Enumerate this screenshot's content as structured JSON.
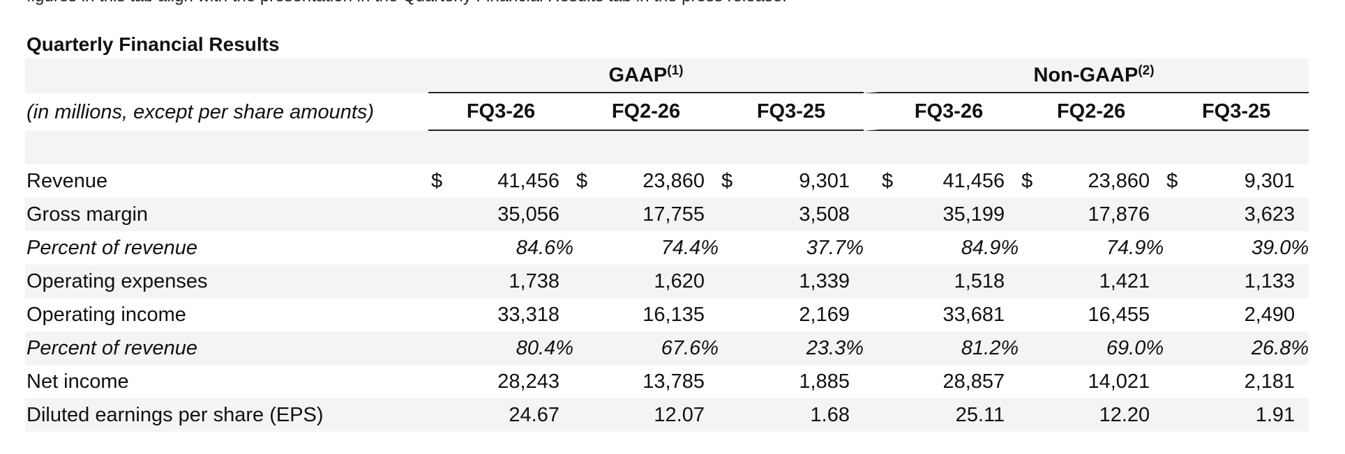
{
  "clipped_top_text": "figures in this tab align with the presentation in the Quarterly Financial Results tab in the press release.",
  "title": "Quarterly Financial Results",
  "groups": {
    "gaap": {
      "label": "GAAP",
      "note": "(1)"
    },
    "nongaap": {
      "label": "Non-GAAP",
      "note": "(2)"
    }
  },
  "subtitle": "(in millions, except per share amounts)",
  "columns": [
    "FQ3-26",
    "FQ2-26",
    "FQ3-25",
    "FQ3-26",
    "FQ2-26",
    "FQ3-25"
  ],
  "currency_symbol": "$",
  "rows": [
    {
      "label": "Revenue",
      "italic": false,
      "currency": true,
      "values": [
        "41,456",
        "23,860",
        "9,301",
        "41,456",
        "23,860",
        "9,301"
      ]
    },
    {
      "label": "Gross margin",
      "italic": false,
      "currency": false,
      "values": [
        "35,056",
        "17,755",
        "3,508",
        "35,199",
        "17,876",
        "3,623"
      ]
    },
    {
      "label": "Percent of revenue",
      "italic": true,
      "currency": false,
      "values": [
        "84.6%",
        "74.4%",
        "37.7%",
        "84.9%",
        "74.9%",
        "39.0%"
      ]
    },
    {
      "label": "Operating expenses",
      "italic": false,
      "currency": false,
      "values": [
        "1,738",
        "1,620",
        "1,339",
        "1,518",
        "1,421",
        "1,133"
      ]
    },
    {
      "label": "Operating income",
      "italic": false,
      "currency": false,
      "values": [
        "33,318",
        "16,135",
        "2,169",
        "33,681",
        "16,455",
        "2,490"
      ]
    },
    {
      "label": "Percent of revenue",
      "italic": true,
      "currency": false,
      "values": [
        "80.4%",
        "67.6%",
        "23.3%",
        "81.2%",
        "69.0%",
        "26.8%"
      ]
    },
    {
      "label": "Net income",
      "italic": false,
      "currency": false,
      "values": [
        "28,243",
        "13,785",
        "1,885",
        "28,857",
        "14,021",
        "2,181"
      ]
    },
    {
      "label": "Diluted earnings per share (EPS)",
      "italic": false,
      "currency": false,
      "values": [
        "24.67",
        "12.07",
        "1.68",
        "25.11",
        "12.20",
        "1.91"
      ]
    }
  ]
}
